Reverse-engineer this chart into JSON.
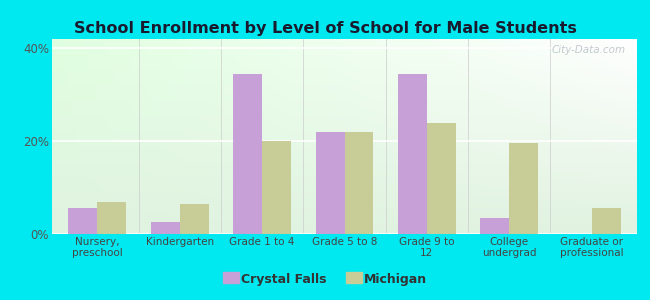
{
  "title": "School Enrollment by Level of School for Male Students",
  "categories": [
    "Nursery,\npreschool",
    "Kindergarten",
    "Grade 1 to 4",
    "Grade 5 to 8",
    "Grade 9 to\n12",
    "College\nundergrad",
    "Graduate or\nprofessional"
  ],
  "crystal_falls": [
    5.5,
    2.5,
    34.5,
    22.0,
    34.5,
    3.5,
    0.0
  ],
  "michigan": [
    7.0,
    6.5,
    20.0,
    22.0,
    24.0,
    19.5,
    5.5
  ],
  "crystal_falls_color": "#c8a0d8",
  "michigan_color": "#c8cc96",
  "background_color": "#00e8f0",
  "title_fontsize": 11.5,
  "ylabel_ticks": [
    "0%",
    "20%",
    "40%"
  ],
  "ytick_vals": [
    0,
    20,
    40
  ],
  "ylim": [
    0,
    42
  ],
  "bar_width": 0.35,
  "legend_labels": [
    "Crystal Falls",
    "Michigan"
  ],
  "watermark": "City-Data.com"
}
